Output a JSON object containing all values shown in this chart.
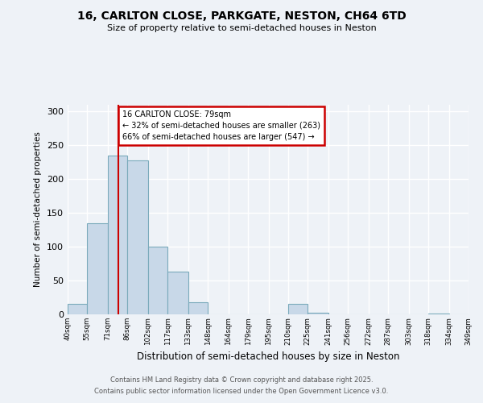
{
  "title_line1": "16, CARLTON CLOSE, PARKGATE, NESTON, CH64 6TD",
  "title_line2": "Size of property relative to semi-detached houses in Neston",
  "xlabel": "Distribution of semi-detached houses by size in Neston",
  "ylabel": "Number of semi-detached properties",
  "property_size": 79,
  "property_label": "16 CARLTON CLOSE: 79sqm",
  "pct_smaller": 32,
  "count_smaller": 263,
  "pct_larger": 66,
  "count_larger": 547,
  "bin_edges": [
    40,
    55,
    71,
    86,
    102,
    117,
    133,
    148,
    164,
    179,
    195,
    210,
    225,
    241,
    256,
    272,
    287,
    303,
    318,
    334,
    349
  ],
  "bar_heights": [
    15,
    135,
    235,
    228,
    100,
    63,
    18,
    0,
    0,
    0,
    0,
    15,
    2,
    0,
    0,
    0,
    0,
    0,
    1,
    0
  ],
  "bar_color": "#c8d8e8",
  "bar_edge_color": "#7aaabb",
  "bar_linewidth": 0.8,
  "vline_color": "#cc0000",
  "vline_x": 79,
  "annotation_box_color": "#cc0000",
  "annotation_bg_color": "#ffffff",
  "background_color": "#eef2f7",
  "grid_color": "#ffffff",
  "ylim": [
    0,
    310
  ],
  "yticks": [
    0,
    50,
    100,
    150,
    200,
    250,
    300
  ],
  "footer_line1": "Contains HM Land Registry data © Crown copyright and database right 2025.",
  "footer_line2": "Contains public sector information licensed under the Open Government Licence v3.0."
}
